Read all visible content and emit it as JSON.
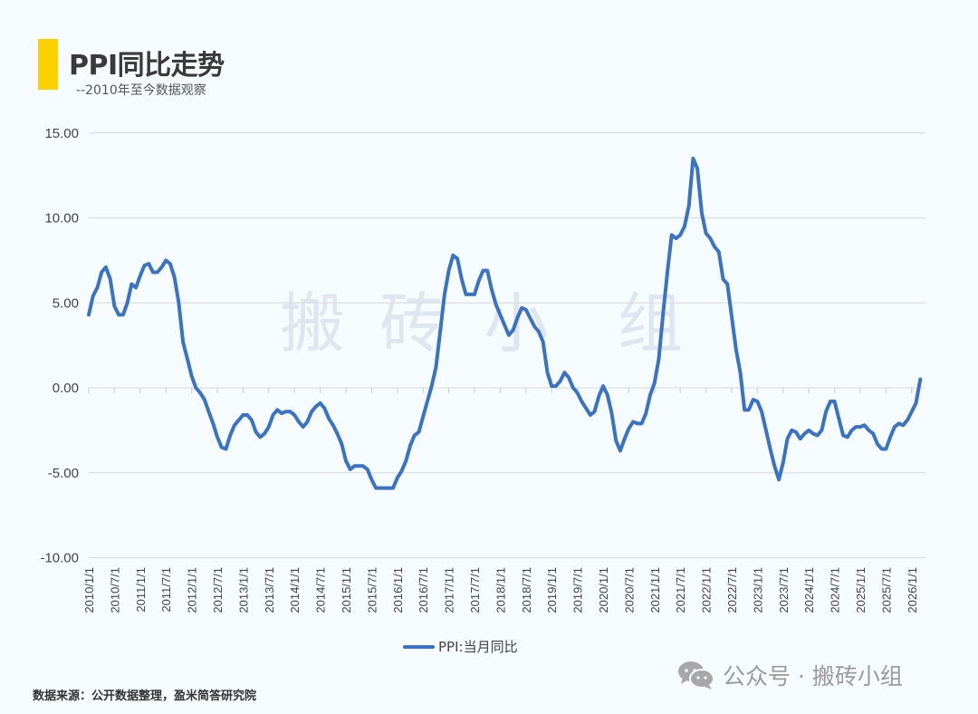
{
  "header": {
    "title": "PPI同比走势",
    "subtitle": "--2010年至今数据观察",
    "accent_color": "#fdd000"
  },
  "watermark": [
    "搬",
    "砖",
    "小",
    "组"
  ],
  "legend": {
    "label": "PPI:当月同比",
    "color": "#3a73c3"
  },
  "footer": {
    "source": "数据来源：公开数据整理，盈米简答研究院",
    "brand": "公众号 · 搬砖小组",
    "brand_icon": "wechat-icon"
  },
  "chart_data": {
    "type": "line",
    "title": "PPI同比走势",
    "subtitle": "--2010年至今数据观察",
    "xlabel": "",
    "ylabel": "",
    "ylim": [
      -10,
      15
    ],
    "yticks": [
      "15.00",
      "10.00",
      "5.00",
      "0.00",
      "-5.00",
      "-10.00"
    ],
    "ytick_values": [
      15,
      10,
      5,
      0,
      -5,
      -10
    ],
    "xticks": [
      "2010/1/1",
      "2010/7/1",
      "2011/1/1",
      "2011/7/1",
      "2012/1/1",
      "2012/7/1",
      "2013/1/1",
      "2013/7/1",
      "2014/1/1",
      "2014/7/1",
      "2015/1/1",
      "2015/7/1",
      "2016/1/1",
      "2016/7/1",
      "2017/1/1",
      "2017/7/1",
      "2018/1/1",
      "2018/7/1",
      "2019/1/1",
      "2019/7/1",
      "2020/1/1",
      "2020/7/1",
      "2021/1/1",
      "2021/7/1",
      "2022/1/1",
      "2022/7/1",
      "2023/1/1",
      "2023/7/1",
      "2024/1/1",
      "2024/7/1",
      "2025/1/1",
      "2025/7/1",
      "2026/1/1"
    ],
    "grid": true,
    "legend_position": "bottom",
    "series": [
      {
        "name": "PPI:当月同比",
        "color": "#3a73c3",
        "start": "2010/1",
        "frequency": "monthly",
        "values": [
          4.3,
          5.4,
          5.9,
          6.8,
          7.1,
          6.4,
          4.8,
          4.3,
          4.3,
          5.0,
          6.1,
          5.9,
          6.6,
          7.2,
          7.3,
          6.8,
          6.8,
          7.1,
          7.5,
          7.3,
          6.5,
          5.0,
          2.7,
          1.7,
          0.7,
          0.0,
          -0.3,
          -0.7,
          -1.4,
          -2.1,
          -2.9,
          -3.5,
          -3.6,
          -2.8,
          -2.2,
          -1.9,
          -1.6,
          -1.6,
          -1.9,
          -2.6,
          -2.9,
          -2.7,
          -2.3,
          -1.6,
          -1.3,
          -1.5,
          -1.4,
          -1.4,
          -1.6,
          -2.0,
          -2.3,
          -2.0,
          -1.4,
          -1.1,
          -0.9,
          -1.2,
          -1.8,
          -2.2,
          -2.7,
          -3.3,
          -4.3,
          -4.8,
          -4.6,
          -4.6,
          -4.6,
          -4.8,
          -5.4,
          -5.9,
          -5.9,
          -5.9,
          -5.9,
          -5.9,
          -5.3,
          -4.9,
          -4.3,
          -3.4,
          -2.8,
          -2.6,
          -1.7,
          -0.8,
          0.1,
          1.2,
          3.3,
          5.5,
          6.9,
          7.8,
          7.6,
          6.4,
          5.5,
          5.5,
          5.5,
          6.3,
          6.9,
          6.9,
          5.8,
          4.9,
          4.3,
          3.7,
          3.1,
          3.4,
          4.1,
          4.7,
          4.6,
          4.1,
          3.6,
          3.3,
          2.7,
          0.9,
          0.1,
          0.1,
          0.4,
          0.9,
          0.6,
          0.0,
          -0.3,
          -0.8,
          -1.2,
          -1.6,
          -1.4,
          -0.5,
          0.1,
          -0.4,
          -1.5,
          -3.1,
          -3.7,
          -3.0,
          -2.4,
          -2.0,
          -2.1,
          -2.1,
          -1.5,
          -0.4,
          0.3,
          1.7,
          4.4,
          6.8,
          9.0,
          8.8,
          9.0,
          9.5,
          10.7,
          13.5,
          12.9,
          10.3,
          9.1,
          8.8,
          8.3,
          8.0,
          6.4,
          6.1,
          4.2,
          2.3,
          0.9,
          -1.3,
          -1.3,
          -0.7,
          -0.8,
          -1.4,
          -2.5,
          -3.6,
          -4.6,
          -5.4,
          -4.4,
          -3.0,
          -2.5,
          -2.6,
          -3.0,
          -2.7,
          -2.5,
          -2.7,
          -2.8,
          -2.5,
          -1.4,
          -0.8,
          -0.8,
          -1.8,
          -2.8,
          -2.9,
          -2.5,
          -2.3,
          -2.3,
          -2.2,
          -2.5,
          -2.7,
          -3.3,
          -3.6,
          -3.6,
          -2.9,
          -2.3,
          -2.1,
          -2.2,
          -1.9,
          -1.4,
          -0.9,
          0.5
        ]
      }
    ]
  }
}
